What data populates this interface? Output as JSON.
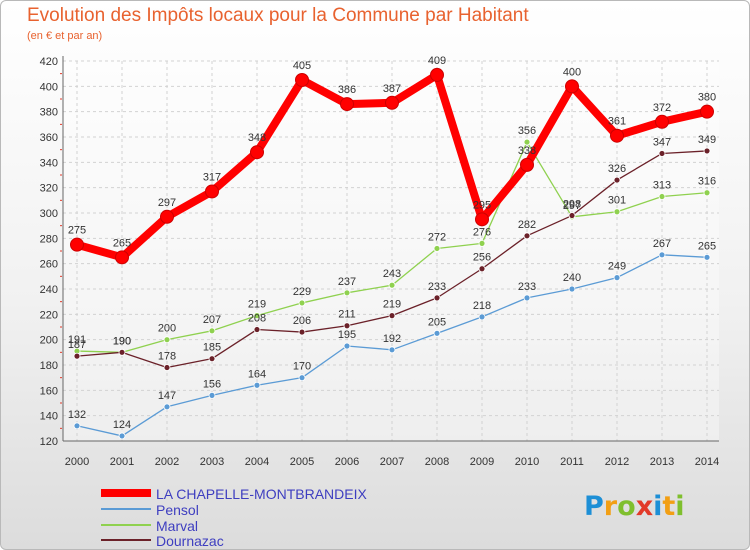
{
  "chart_data": {
    "type": "line",
    "title": "Evolution des Impôts locaux pour la Commune par Habitant",
    "subtitle": "(en € et par an)",
    "x": [
      "2000",
      "2001",
      "2002",
      "2003",
      "2004",
      "2005",
      "2006",
      "2007",
      "2008",
      "2009",
      "2010",
      "2011",
      "2012",
      "2013",
      "2014"
    ],
    "ylim": [
      120,
      420
    ],
    "yticks": [
      120,
      140,
      160,
      180,
      200,
      220,
      240,
      260,
      280,
      300,
      320,
      340,
      360,
      380,
      400,
      420
    ],
    "grid": true,
    "legend_position": "bottom-left",
    "series": [
      {
        "name": "LA CHAPELLE-MONTBRANDEIX",
        "color": "#ff0000",
        "values": [
          275,
          265,
          297,
          317,
          348,
          405,
          386,
          387,
          409,
          295,
          338,
          400,
          361,
          372,
          380
        ]
      },
      {
        "name": "Pensol",
        "color": "#5b9bd5",
        "values": [
          132,
          124,
          147,
          156,
          164,
          170,
          195,
          192,
          205,
          218,
          233,
          240,
          249,
          267,
          265
        ]
      },
      {
        "name": "Marval",
        "color": "#8fd14f",
        "values": [
          191,
          190,
          200,
          207,
          219,
          229,
          237,
          243,
          272,
          276,
          356,
          297,
          301,
          313,
          316
        ]
      },
      {
        "name": "Dournazac",
        "color": "#6b2129",
        "values": [
          187,
          190,
          178,
          185,
          208,
          206,
          211,
          219,
          233,
          256,
          282,
          298,
          326,
          347,
          349
        ]
      }
    ]
  },
  "logo": {
    "text": "Proxiti",
    "letters": [
      "P",
      "r",
      "o",
      "x",
      "i",
      "t",
      "i"
    ]
  }
}
